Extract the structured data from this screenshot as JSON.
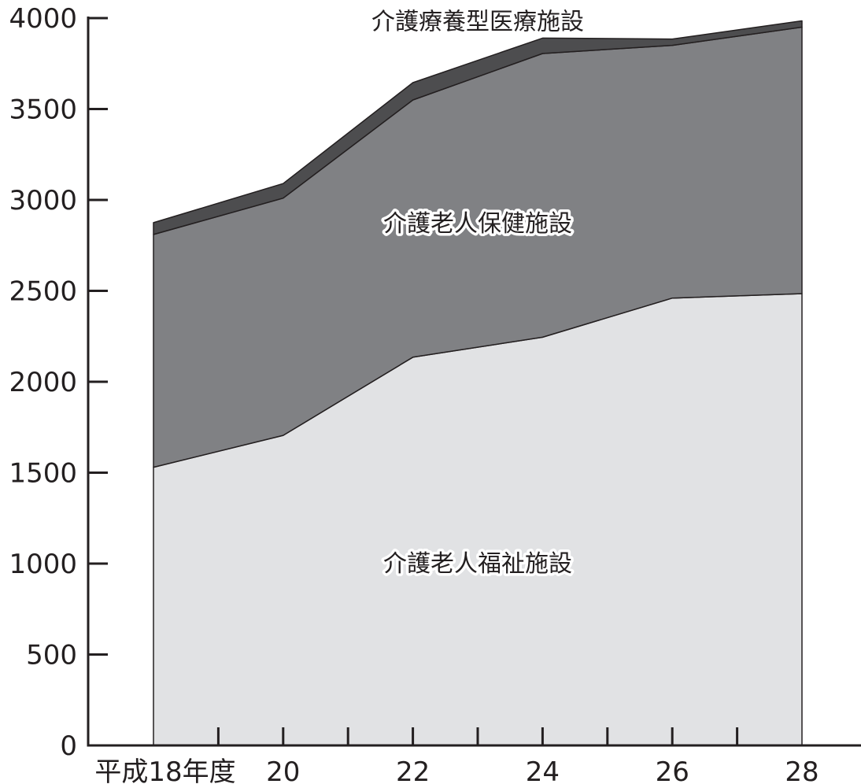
{
  "chart_data": {
    "type": "area",
    "stacked": true,
    "categories": [
      "平成18年度",
      "20",
      "22",
      "24",
      "26",
      "28"
    ],
    "x": [
      18,
      20,
      22,
      24,
      26,
      28
    ],
    "ylim": [
      0,
      4000
    ],
    "yticks": [
      0,
      500,
      1000,
      1500,
      2000,
      2500,
      3000,
      3500,
      4000
    ],
    "grid": false,
    "series": [
      {
        "name": "介護老人福祉施設",
        "values": [
          1530,
          1705,
          2135,
          2245,
          2460,
          2485
        ],
        "color": "#e1e2e4"
      },
      {
        "name": "介護老人保健施設",
        "values": [
          1280,
          1305,
          1415,
          1560,
          1390,
          1465
        ],
        "color": "#808184"
      },
      {
        "name": "介護療養型医療施設",
        "values": [
          65,
          80,
          95,
          85,
          35,
          35
        ],
        "color": "#4d4d4f"
      }
    ]
  }
}
